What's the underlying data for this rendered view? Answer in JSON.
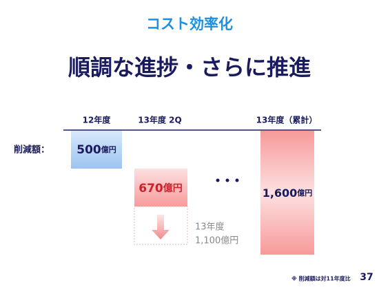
{
  "header": {
    "category": "コスト効率化",
    "title": "順調な進捗・さらに推進"
  },
  "columns": [
    "12年度",
    "13年度 2Q",
    "13年度（累計）"
  ],
  "row_label": "削減額：",
  "bars": [
    {
      "amount": "500",
      "unit": "億円"
    },
    {
      "amount": "670",
      "unit": "億円"
    },
    {
      "amount": "1,600",
      "unit": "億円"
    }
  ],
  "forecast": [
    "13年度",
    "1,100億円"
  ],
  "footnote": "※ 削減額は対11年度比",
  "page_number": "37"
}
